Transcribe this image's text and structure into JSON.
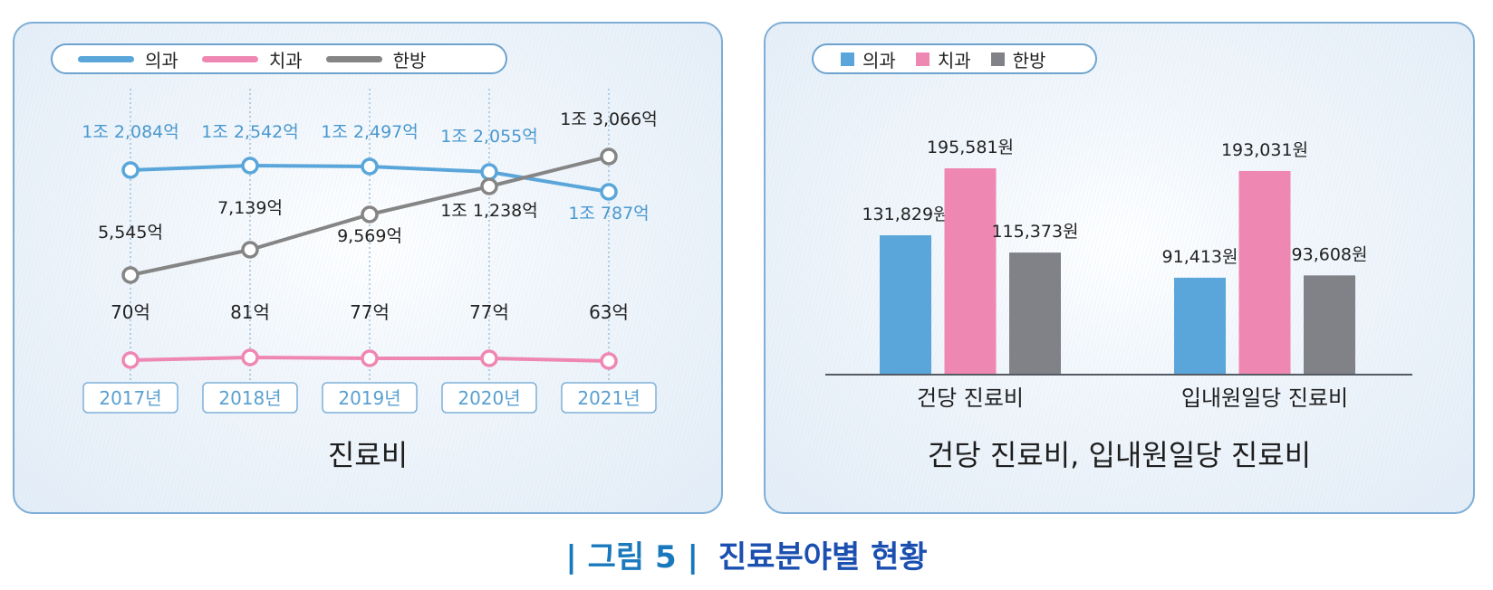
{
  "colors": {
    "medical": "#5aa6da",
    "dental": "#ef87b3",
    "oriental": "#858585",
    "bar_oriental": "#818287",
    "panel_border": "#7eaed6",
    "year_text": "#5aa0d0",
    "caption_label": "#1a79bd",
    "caption_title": "#1b4fb0"
  },
  "legend": {
    "items": [
      {
        "label": "의과",
        "key": "medical"
      },
      {
        "label": "치과",
        "key": "dental"
      },
      {
        "label": "한방",
        "key": "oriental"
      }
    ]
  },
  "left_chart": {
    "title": "진료비",
    "years": [
      "2017년",
      "2018년",
      "2019년",
      "2020년",
      "2021년"
    ]
  },
  "right_chart": {
    "title": "건당 진료비, 입내원일당 진료비",
    "groups": [
      "건당 진료비",
      "입내원일당 진료비"
    ]
  },
  "caption": {
    "label": "| 그림 5 |",
    "title": "진료분야별 현황"
  },
  "chart_data": [
    {
      "type": "line",
      "title": "진료비",
      "x": [
        "2017년",
        "2018년",
        "2019년",
        "2020년",
        "2021년"
      ],
      "xlabel": "",
      "ylabel": "",
      "grid": "vertical dotted guides",
      "legend_position": "top",
      "series": [
        {
          "name": "의과",
          "values": [
            12084,
            12542,
            12497,
            12055,
            10787
          ],
          "unit": "억원",
          "labels": [
            "1조 2,084억",
            "1조 2,542억",
            "1조 2,497억",
            "1조 2,055억",
            "1조 787억"
          ]
        },
        {
          "name": "치과",
          "values": [
            70,
            81,
            77,
            77,
            63
          ],
          "unit": "억원",
          "labels": [
            "70억",
            "81억",
            "77억",
            "77억",
            "63억"
          ]
        },
        {
          "name": "한방",
          "values": [
            5545,
            7139,
            9569,
            11238,
            13066
          ],
          "unit": "억원",
          "labels": [
            "5,545억",
            "7,139억",
            "9,569억",
            "1조 1,238억",
            "1조 3,066억"
          ]
        }
      ]
    },
    {
      "type": "bar",
      "title": "건당 진료비, 입내원일당 진료비",
      "categories": [
        "건당 진료비",
        "입내원일당 진료비"
      ],
      "xlabel": "",
      "ylabel": "",
      "grid": false,
      "legend_position": "top",
      "series": [
        {
          "name": "의과",
          "values": [
            131829,
            91413
          ],
          "unit": "원",
          "labels": [
            "131,829원",
            "91,413원"
          ]
        },
        {
          "name": "치과",
          "values": [
            195581,
            193031
          ],
          "unit": "원",
          "labels": [
            "195,581원",
            "193,031원"
          ]
        },
        {
          "name": "한방",
          "values": [
            115373,
            93608
          ],
          "unit": "원",
          "labels": [
            "115,373원",
            "93,608원"
          ]
        }
      ]
    }
  ]
}
